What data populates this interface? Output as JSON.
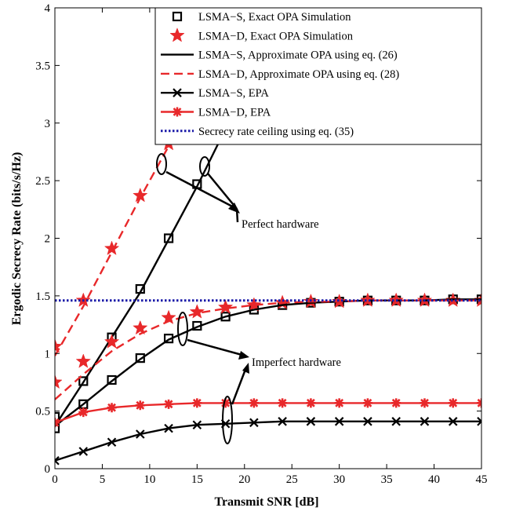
{
  "chart_data": {
    "type": "line",
    "xlabel": "Transmit SNR [dB]",
    "ylabel": "Ergodic Secrecy Rate (bits/s/Hz)",
    "xlim": [
      0,
      45
    ],
    "ylim": [
      0,
      4
    ],
    "xticks": [
      0,
      5,
      10,
      15,
      20,
      25,
      30,
      35,
      40,
      45
    ],
    "yticks": [
      0,
      0.5,
      1,
      1.5,
      2,
      2.5,
      3,
      3.5,
      4
    ],
    "xtick_labels": [
      "0",
      "5",
      "10",
      "15",
      "20",
      "25",
      "30",
      "35",
      "40",
      "45"
    ],
    "ytick_labels": [
      "0",
      "0.5",
      "1",
      "1.5",
      "2",
      "2.5",
      "3",
      "3.5",
      "4"
    ],
    "grid": false,
    "legend_position": "top-right",
    "series": [
      {
        "name": "LSMA−S, Exact OPA Simulation",
        "color": "#000000",
        "marker": "square",
        "line": "none",
        "group": "perfect",
        "x": [
          0,
          3,
          6,
          9,
          12,
          15,
          18
        ],
        "y": [
          0.45,
          0.76,
          1.14,
          1.56,
          2.0,
          2.47,
          2.95
        ]
      },
      {
        "name": "LSMA−D, Exact OPA Simulation",
        "color": "#e8282a",
        "marker": "star",
        "line": "none",
        "group": "perfect",
        "x": [
          0,
          3,
          6,
          9,
          12
        ],
        "y": [
          1.06,
          1.46,
          1.91,
          2.37,
          2.82
        ]
      },
      {
        "name": "LSMA−S, Approximate OPA using eq. (26)",
        "color": "#000000",
        "marker": "none",
        "line": "solid",
        "group": "perfect",
        "x": [
          0,
          3,
          6,
          9,
          12,
          15,
          18
        ],
        "y": [
          0.37,
          0.75,
          1.14,
          1.53,
          1.99,
          2.45,
          2.95
        ]
      },
      {
        "name": "LSMA−D, Approximate OPA using eq. (28)",
        "color": "#e8282a",
        "marker": "none",
        "line": "dashed",
        "group": "perfect",
        "x": [
          0,
          3,
          6,
          9,
          12
        ],
        "y": [
          0.98,
          1.41,
          1.88,
          2.35,
          2.8
        ]
      },
      {
        "name": "",
        "color": "#000000",
        "marker": "square",
        "line": "none",
        "group": "imperfect",
        "x": [
          0,
          3,
          6,
          9,
          12,
          15,
          18,
          21,
          24,
          27,
          30,
          33,
          36,
          39,
          42,
          45
        ],
        "y": [
          0.35,
          0.56,
          0.77,
          0.96,
          1.13,
          1.24,
          1.32,
          1.38,
          1.42,
          1.44,
          1.45,
          1.46,
          1.46,
          1.46,
          1.47,
          1.47
        ]
      },
      {
        "name": "",
        "color": "#e8282a",
        "marker": "star",
        "line": "none",
        "group": "imperfect",
        "x": [
          0,
          3,
          6,
          9,
          12,
          15,
          18,
          21,
          24,
          27,
          30,
          33,
          36,
          39,
          42,
          45
        ],
        "y": [
          0.75,
          0.93,
          1.1,
          1.22,
          1.31,
          1.36,
          1.4,
          1.42,
          1.44,
          1.45,
          1.45,
          1.46,
          1.46,
          1.46,
          1.46,
          1.46
        ]
      },
      {
        "name": "",
        "color": "#000000",
        "marker": "none",
        "line": "solid",
        "group": "imperfect",
        "x": [
          0,
          3,
          6,
          9,
          12,
          15,
          18,
          21,
          24,
          27,
          30,
          33,
          36,
          39,
          42,
          45
        ],
        "y": [
          0.37,
          0.56,
          0.76,
          0.95,
          1.12,
          1.23,
          1.32,
          1.38,
          1.42,
          1.44,
          1.45,
          1.46,
          1.46,
          1.46,
          1.47,
          1.47
        ]
      },
      {
        "name": "",
        "color": "#e8282a",
        "marker": "none",
        "line": "dashed",
        "group": "imperfect",
        "x": [
          0,
          3,
          6,
          9,
          12,
          15,
          18,
          21,
          24,
          27,
          30,
          33,
          36,
          39,
          42,
          45
        ],
        "y": [
          0.6,
          0.82,
          1.02,
          1.17,
          1.28,
          1.35,
          1.39,
          1.42,
          1.44,
          1.45,
          1.45,
          1.46,
          1.46,
          1.46,
          1.46,
          1.46
        ]
      },
      {
        "name": "LSMA−S, EPA",
        "color": "#000000",
        "marker": "x",
        "line": "solid",
        "group": "imperfect",
        "x": [
          0,
          3,
          6,
          9,
          12,
          15,
          18,
          21,
          24,
          27,
          30,
          33,
          36,
          39,
          42,
          45
        ],
        "y": [
          0.07,
          0.15,
          0.23,
          0.3,
          0.35,
          0.38,
          0.39,
          0.4,
          0.41,
          0.41,
          0.41,
          0.41,
          0.41,
          0.41,
          0.41,
          0.41
        ]
      },
      {
        "name": "LSMA−D, EPA",
        "color": "#e8282a",
        "marker": "asterisk",
        "line": "solid",
        "group": "imperfect",
        "x": [
          0,
          3,
          6,
          9,
          12,
          15,
          18,
          21,
          24,
          27,
          30,
          33,
          36,
          39,
          42,
          45
        ],
        "y": [
          0.4,
          0.49,
          0.53,
          0.55,
          0.56,
          0.57,
          0.57,
          0.57,
          0.57,
          0.57,
          0.57,
          0.57,
          0.57,
          0.57,
          0.57,
          0.57
        ]
      },
      {
        "name": "Secrecy rate ceiling using eq. (35)",
        "color": "#1a1aa8",
        "marker": "none",
        "line": "dotted",
        "group": "ceiling",
        "x": [
          0,
          45
        ],
        "y": [
          1.46,
          1.46
        ]
      }
    ],
    "annotations": [
      {
        "text": "Perfect hardware",
        "x": 20.2,
        "y": 2.12
      },
      {
        "text": "Imperfect hardware",
        "x": 21.6,
        "y": 1.12
      }
    ]
  }
}
